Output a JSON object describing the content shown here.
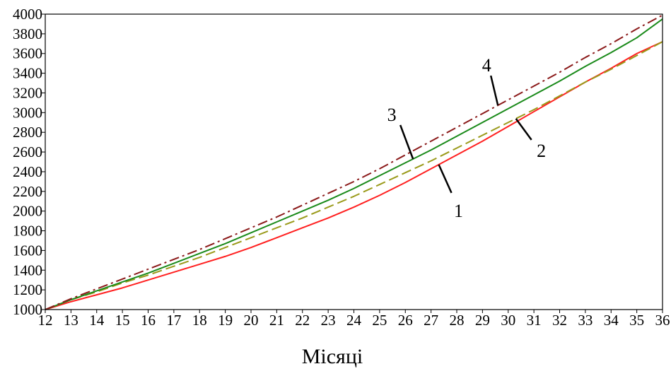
{
  "chart_data": {
    "type": "line",
    "title": "",
    "xlabel": "Місяці",
    "ylabel": "",
    "xlim": [
      12,
      36
    ],
    "ylim": [
      1000,
      4000
    ],
    "x_ticks": [
      "12",
      "13",
      "14",
      "15",
      "16",
      "17",
      "18",
      "19",
      "20",
      "21",
      "22",
      "23",
      "24",
      "25",
      "26",
      "27",
      "28",
      "29",
      "30",
      "31",
      "32",
      "33",
      "34",
      "35",
      "36"
    ],
    "y_ticks": [
      "1000",
      "1200",
      "1400",
      "1600",
      "1800",
      "2000",
      "2200",
      "2400",
      "2600",
      "2800",
      "3000",
      "3200",
      "3400",
      "3600",
      "3800",
      "4000"
    ],
    "grid": false,
    "x": [
      12,
      13,
      14,
      15,
      16,
      17,
      18,
      19,
      20,
      21,
      22,
      23,
      24,
      25,
      26,
      27,
      28,
      29,
      30,
      31,
      32,
      33,
      34,
      35,
      36
    ],
    "series": [
      {
        "name": "1",
        "color": "#ff2020",
        "dash": "solid",
        "values": [
          1000,
          1080,
          1150,
          1220,
          1300,
          1380,
          1460,
          1540,
          1630,
          1730,
          1830,
          1930,
          2040,
          2160,
          2290,
          2430,
          2570,
          2710,
          2860,
          3010,
          3160,
          3310,
          3450,
          3600,
          3720
        ]
      },
      {
        "name": "2",
        "color": "#9a9a1a",
        "dash": "dashed",
        "values": [
          1000,
          1100,
          1180,
          1270,
          1350,
          1440,
          1530,
          1630,
          1730,
          1830,
          1930,
          2040,
          2150,
          2270,
          2390,
          2510,
          2640,
          2770,
          2900,
          3030,
          3170,
          3310,
          3440,
          3580,
          3720
        ]
      },
      {
        "name": "3",
        "color": "#1a8a1a",
        "dash": "solid",
        "values": [
          1000,
          1100,
          1190,
          1280,
          1370,
          1470,
          1570,
          1670,
          1780,
          1890,
          2000,
          2110,
          2230,
          2360,
          2490,
          2620,
          2760,
          2900,
          3040,
          3180,
          3320,
          3470,
          3610,
          3760,
          3950
        ]
      },
      {
        "name": "4",
        "color": "#8b1a1a",
        "dash": "dashdot",
        "values": [
          1000,
          1110,
          1210,
          1310,
          1410,
          1510,
          1610,
          1720,
          1830,
          1940,
          2060,
          2180,
          2300,
          2430,
          2570,
          2710,
          2850,
          2990,
          3130,
          3270,
          3410,
          3560,
          3700,
          3850,
          3990
        ]
      }
    ],
    "callouts": [
      {
        "label": "1",
        "series": "1"
      },
      {
        "label": "2",
        "series": "2"
      },
      {
        "label": "3",
        "series": "3"
      },
      {
        "label": "4",
        "series": "4"
      }
    ]
  }
}
